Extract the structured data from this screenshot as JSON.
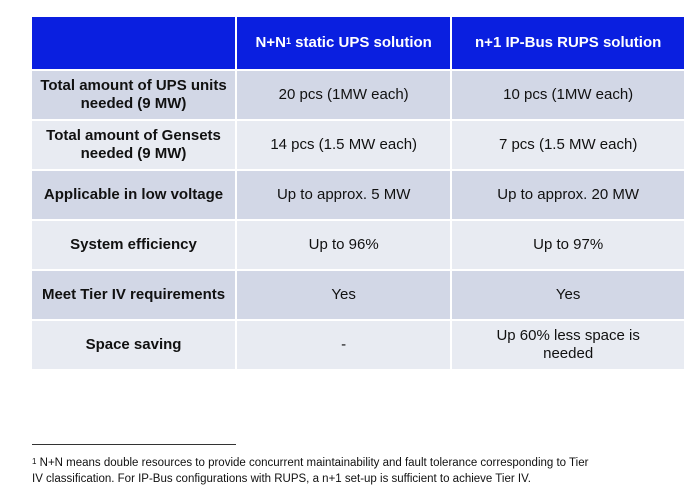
{
  "table": {
    "header": {
      "col1": "",
      "col2_main": "N+N",
      "col2_sup": "1",
      "col2_rest": " static UPS solution",
      "col3": "n+1 IP-Bus RUPS solution"
    },
    "rows": [
      {
        "label_line1": "Total amount of UPS units",
        "label_line2": "needed (9 MW)",
        "nn": "20 pcs (1MW each)",
        "ipbus": "10 pcs (1MW each)"
      },
      {
        "label_line1": "Total amount of Gensets",
        "label_line2": "needed (9 MW)",
        "nn": "14 pcs (1.5 MW each)",
        "ipbus": "7 pcs (1.5 MW each)"
      },
      {
        "label": "Applicable in low voltage",
        "nn": "Up to approx. 5 MW",
        "ipbus": "Up to approx. 20 MW"
      },
      {
        "label": "System efficiency",
        "nn": "Up to 96%",
        "ipbus": "Up to 97%"
      },
      {
        "label": "Meet Tier IV requirements",
        "nn": "Yes",
        "ipbus": "Yes"
      },
      {
        "label": "Space saving",
        "nn": "-",
        "ipbus_line1": "Up 60% less space is",
        "ipbus_line2": "needed"
      }
    ]
  },
  "footnote": {
    "marker": "1",
    "line1": " N+N means double resources to provide concurrent maintainability and fault tolerance corresponding to Tier",
    "line2": "IV classification. For IP-Bus configurations with RUPS, a n+1 set-up is sufficient to achieve Tier IV."
  },
  "colors": {
    "header_bg": "#0a1fe0",
    "row_dark": "#d2d7e6",
    "row_light": "#e8ebf2"
  }
}
